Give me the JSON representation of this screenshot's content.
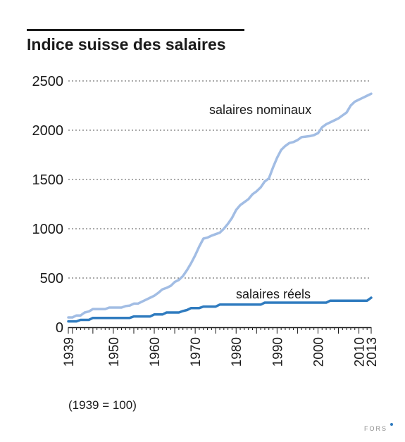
{
  "chart_data": {
    "type": "line",
    "title": "Indice suisse des salaires",
    "xlabel": "",
    "ylabel": "",
    "note": "(1939 = 100)",
    "xlim": [
      1939,
      2013
    ],
    "ylim": [
      0,
      2500
    ],
    "x_ticks": [
      1939,
      1950,
      1960,
      1970,
      1980,
      1990,
      2000,
      2010,
      2013
    ],
    "y_ticks": [
      0,
      500,
      1000,
      1500,
      2000,
      2500
    ],
    "grid": "horizontal dotted",
    "legend": "none",
    "series": [
      {
        "name": "salaires nominaux",
        "color": "#a2bde4",
        "x": [
          1939,
          1940,
          1941,
          1942,
          1943,
          1944,
          1945,
          1946,
          1947,
          1948,
          1949,
          1950,
          1951,
          1952,
          1953,
          1954,
          1955,
          1956,
          1957,
          1958,
          1959,
          1960,
          1961,
          1962,
          1963,
          1964,
          1965,
          1966,
          1967,
          1968,
          1969,
          1970,
          1971,
          1972,
          1973,
          1974,
          1975,
          1976,
          1977,
          1978,
          1979,
          1980,
          1981,
          1982,
          1983,
          1984,
          1985,
          1986,
          1987,
          1988,
          1989,
          1990,
          1991,
          1992,
          1993,
          1994,
          1995,
          1996,
          1997,
          1998,
          1999,
          2000,
          2001,
          2002,
          2003,
          2004,
          2005,
          2006,
          2007,
          2008,
          2009,
          2010,
          2011,
          2012,
          2013
        ],
        "values": [
          100,
          100,
          120,
          120,
          150,
          160,
          185,
          185,
          185,
          185,
          200,
          200,
          200,
          200,
          215,
          220,
          240,
          240,
          260,
          280,
          300,
          320,
          350,
          385,
          400,
          420,
          460,
          480,
          520,
          580,
          650,
          730,
          820,
          900,
          910,
          930,
          945,
          960,
          1000,
          1050,
          1110,
          1190,
          1240,
          1270,
          1300,
          1350,
          1380,
          1420,
          1480,
          1510,
          1620,
          1720,
          1800,
          1840,
          1870,
          1880,
          1900,
          1930,
          1935,
          1940,
          1950,
          1970,
          2030,
          2060,
          2080,
          2100,
          2120,
          2150,
          2180,
          2250,
          2290,
          2310,
          2330,
          2350,
          2370
        ]
      },
      {
        "name": "salaires réels",
        "color": "#2f7bbf",
        "x": [
          1939,
          1941,
          1942,
          1944,
          1945,
          1946,
          1954,
          1955,
          1959,
          1960,
          1962,
          1963,
          1966,
          1967,
          1968,
          1969,
          1971,
          1972,
          1975,
          1976,
          1986,
          1987,
          2002,
          2003,
          2012,
          2013
        ],
        "values": [
          60,
          60,
          75,
          75,
          95,
          95,
          95,
          110,
          110,
          130,
          130,
          150,
          150,
          165,
          175,
          195,
          195,
          210,
          210,
          230,
          230,
          250,
          250,
          270,
          270,
          300
        ]
      }
    ],
    "annotations": [
      {
        "text": "salaires nominaux",
        "series": 0
      },
      {
        "text": "salaires réels",
        "series": 1
      }
    ]
  },
  "source": "FORS"
}
